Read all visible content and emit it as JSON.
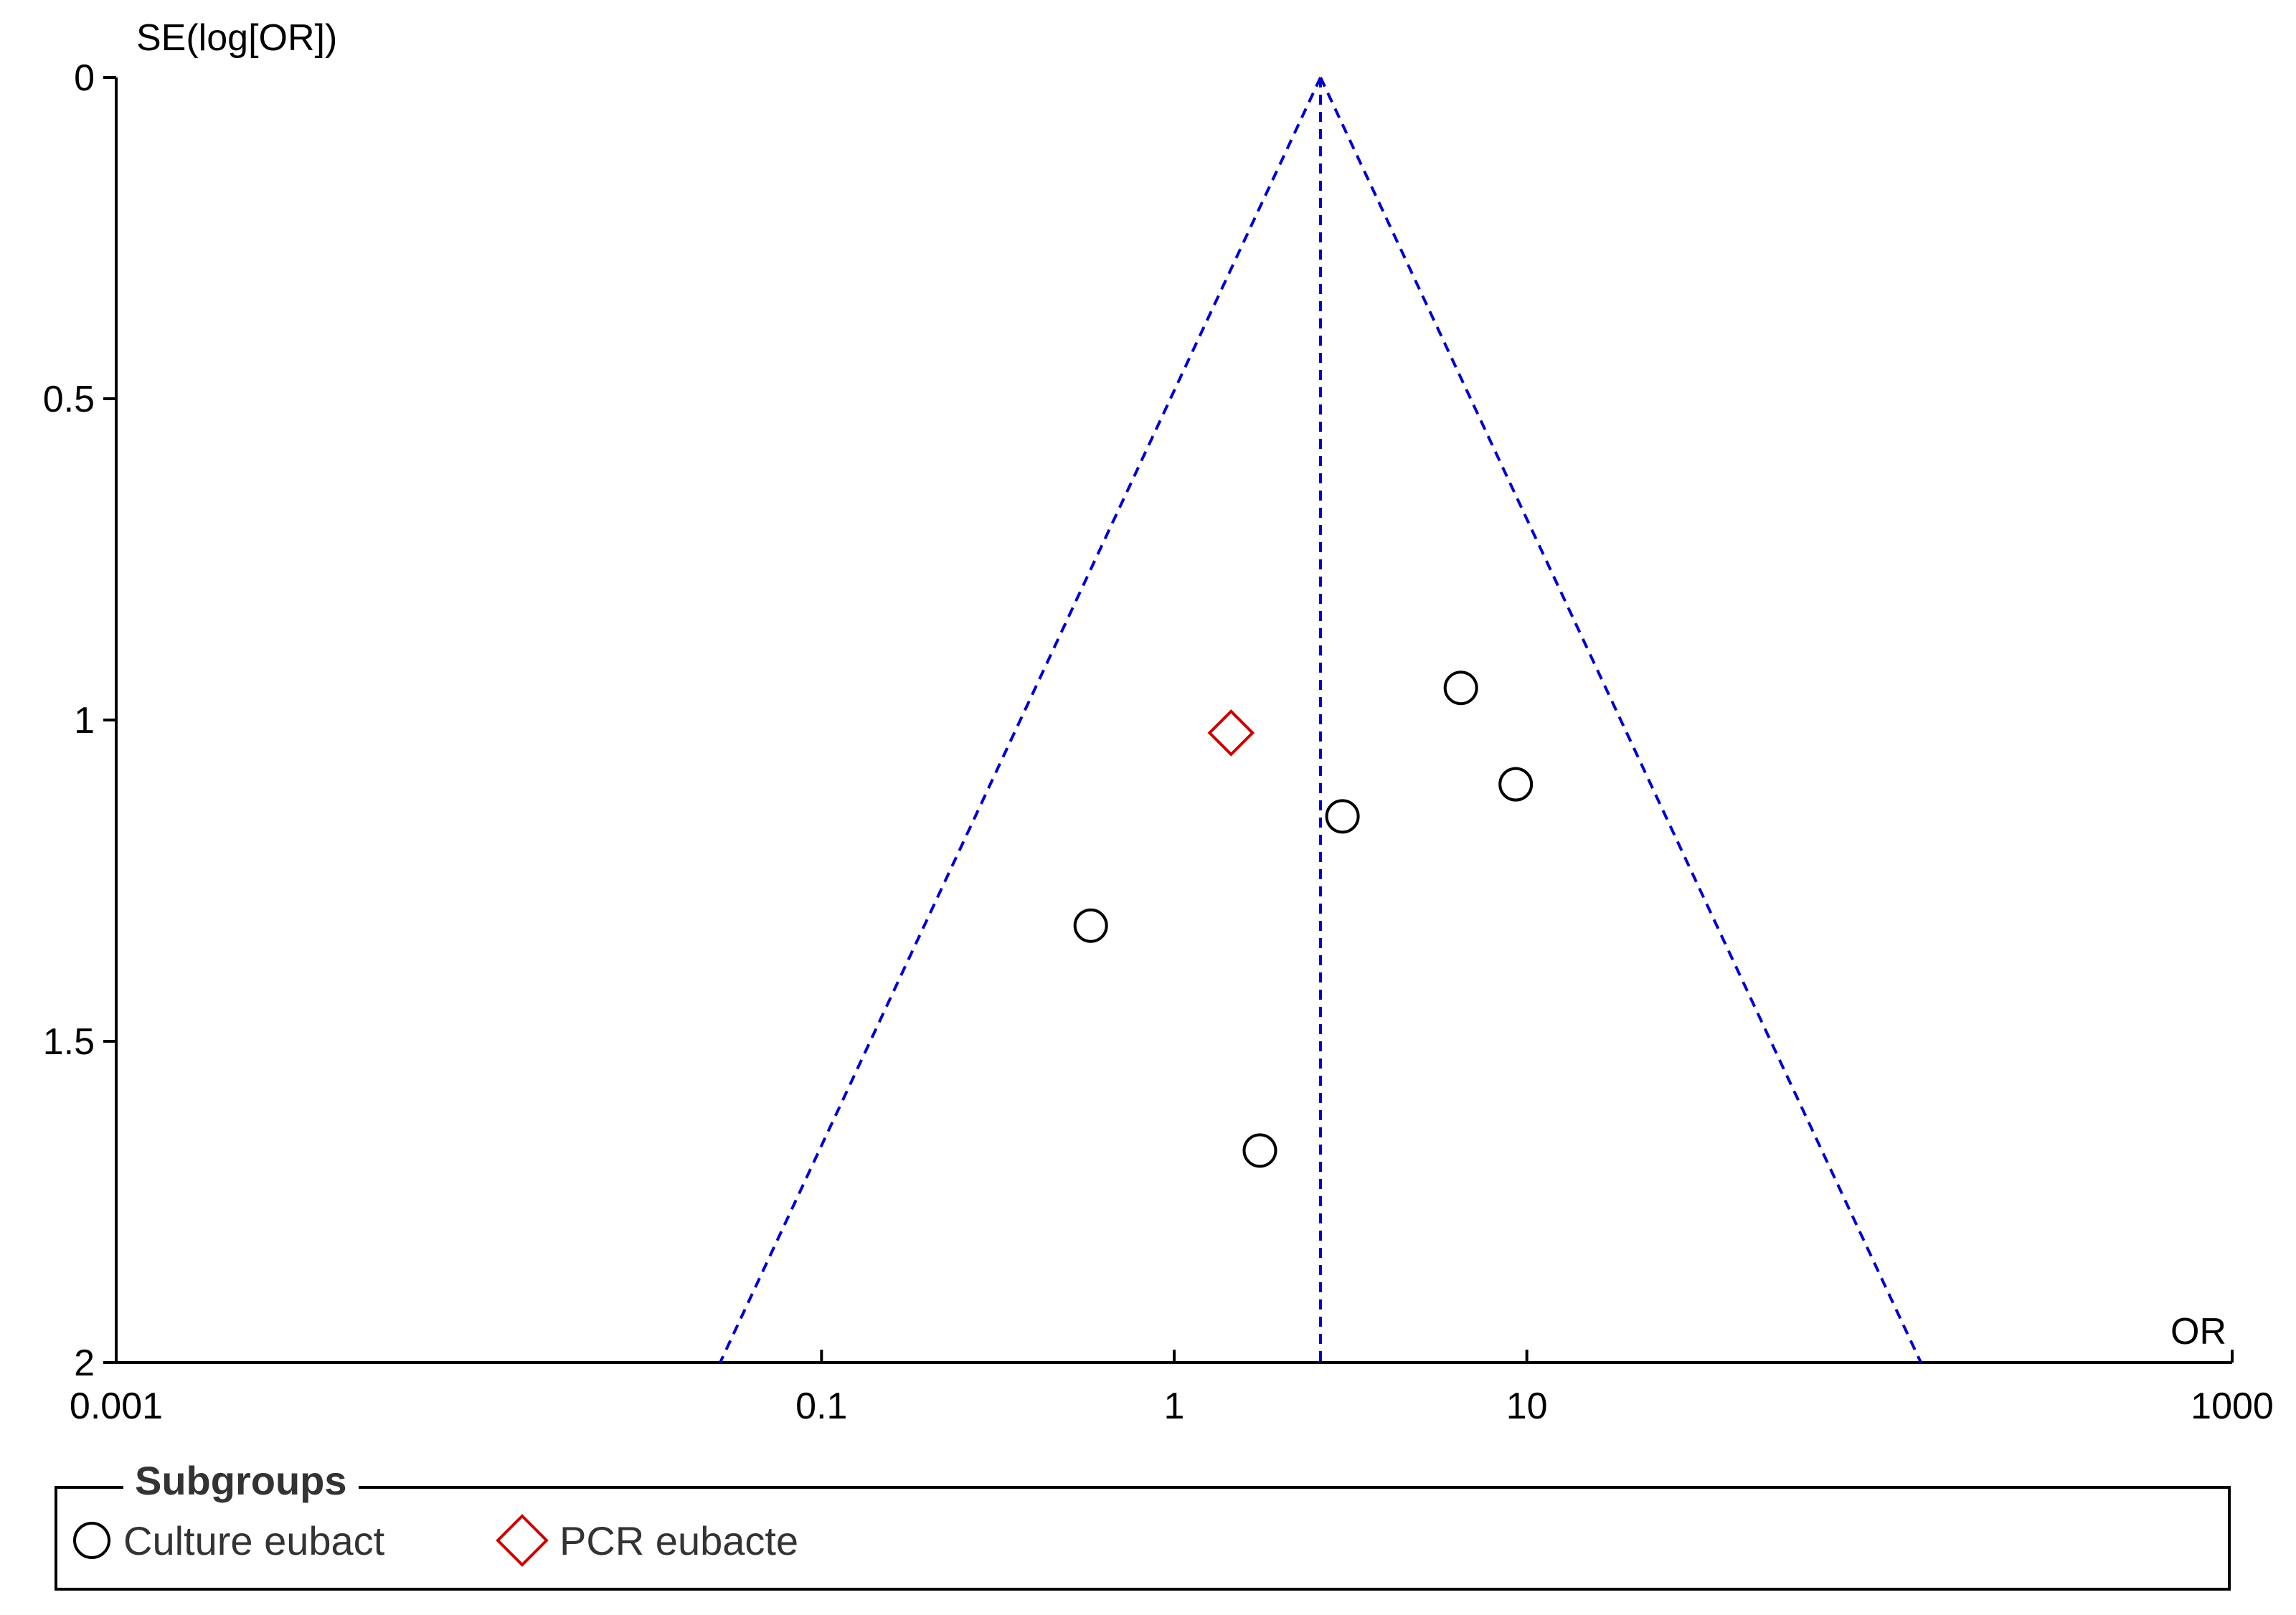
{
  "chart_data": {
    "type": "scatter",
    "title": "",
    "xlabel": "OR",
    "ylabel": "SE(log[OR])",
    "x_scale": "log",
    "xlim": [
      0.001,
      1000
    ],
    "ylim": [
      0,
      2
    ],
    "y_inverted": true,
    "x_ticks": [
      {
        "value": 0.001,
        "label": "0.001"
      },
      {
        "value": 0.1,
        "label": "0.1"
      },
      {
        "value": 1,
        "label": "1"
      },
      {
        "value": 10,
        "label": "10"
      },
      {
        "value": 1000,
        "label": "1000"
      }
    ],
    "y_ticks": [
      {
        "value": 0,
        "label": "0"
      },
      {
        "value": 0.5,
        "label": "0.5"
      },
      {
        "value": 1,
        "label": "1"
      },
      {
        "value": 1.5,
        "label": "1.5"
      },
      {
        "value": 2,
        "label": "2"
      }
    ],
    "pooled_estimate": 2.6,
    "funnel_line_color": "#0000cc",
    "series": [
      {
        "name": "Culture eubact",
        "marker": "circle",
        "color": "#000000",
        "points": [
          {
            "x": 6.5,
            "y": 0.95
          },
          {
            "x": 9.3,
            "y": 1.1
          },
          {
            "x": 3.0,
            "y": 1.15
          },
          {
            "x": 0.58,
            "y": 1.32
          },
          {
            "x": 1.75,
            "y": 1.67
          }
        ]
      },
      {
        "name": "PCR eubacte",
        "marker": "diamond",
        "color": "#cc0000",
        "points": [
          {
            "x": 1.45,
            "y": 1.02
          }
        ]
      }
    ],
    "grid": false,
    "legend": {
      "title": "Subgroups",
      "position": "bottom"
    }
  }
}
